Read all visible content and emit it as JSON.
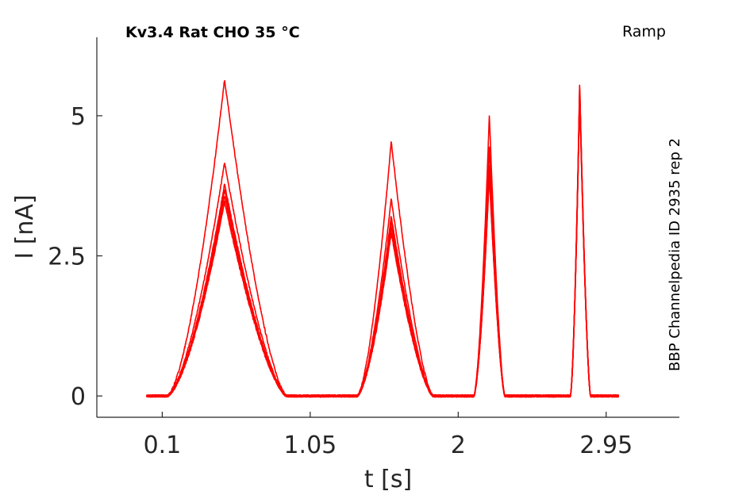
{
  "chart_data": {
    "type": "line",
    "title": "Kv3.4  Rat  CHO  35 °C",
    "protocol_label": "Ramp",
    "source_label": "BBP Channelpedia ID 2935 rep 2",
    "xlabel": "t [s]",
    "ylabel": "I [nA]",
    "xlim": [
      -0.32,
      3.42
    ],
    "ylim": [
      -0.38,
      6.4
    ],
    "x_ticks": [
      {
        "value": 0.1,
        "label": "0.1"
      },
      {
        "value": 1.05,
        "label": "1.05"
      },
      {
        "value": 2,
        "label": "2"
      },
      {
        "value": 2.95,
        "label": "2.95"
      }
    ],
    "y_ticks": [
      {
        "value": 0,
        "label": "0"
      },
      {
        "value": 2.5,
        "label": "2.5"
      },
      {
        "value": 5,
        "label": "5"
      }
    ],
    "grid": false,
    "legend": "none",
    "color": "#ff0000",
    "peaks": [
      {
        "rise_start": 0.13,
        "rise_end": 0.5,
        "fall_end": 0.9,
        "amplitudes": [
          5.65,
          4.17,
          3.78,
          3.68,
          3.58,
          3.47
        ]
      },
      {
        "rise_start": 1.35,
        "rise_end": 1.57,
        "fall_end": 1.84,
        "amplitudes": [
          4.55,
          3.52,
          3.22,
          3.12,
          3.02,
          2.92
        ]
      },
      {
        "rise_start": 2.1,
        "rise_end": 2.2,
        "fall_end": 2.3,
        "amplitudes": [
          5.03,
          4.45,
          4.12,
          4.05,
          4.0,
          3.95
        ]
      },
      {
        "rise_start": 2.72,
        "rise_end": 2.78,
        "fall_end": 2.85,
        "amplitudes": [
          5.6,
          5.55,
          5.5,
          5.47,
          5.44,
          5.4
        ]
      }
    ],
    "x_start": 0.0,
    "x_end": 3.03,
    "n_traces": 6
  }
}
